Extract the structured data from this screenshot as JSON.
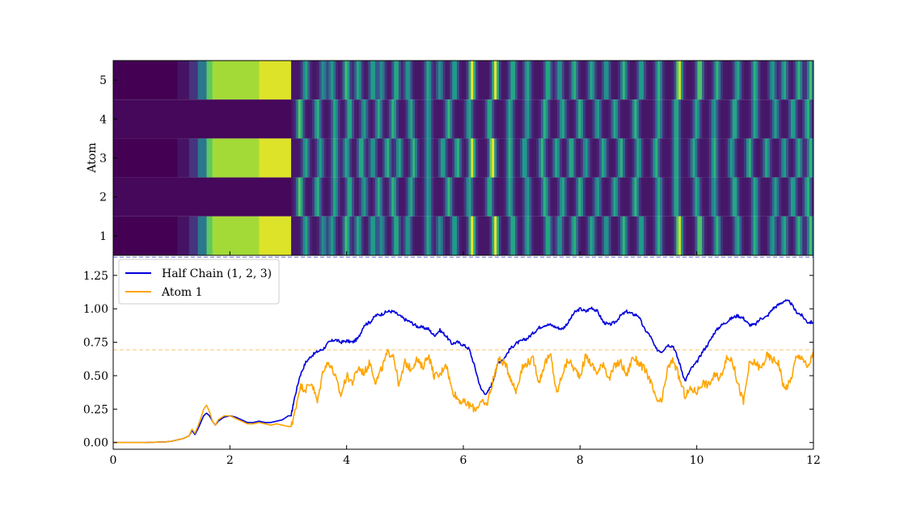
{
  "chart_data": [
    {
      "type": "heatmap",
      "ylabel": "Atom",
      "y_categories": [
        "1",
        "2",
        "3",
        "4",
        "5"
      ],
      "xlim": [
        0,
        12
      ],
      "colormap": [
        "#440154",
        "#482878",
        "#3e4a89",
        "#31688e",
        "#26828e",
        "#1f9e89",
        "#35b779",
        "#6ece58",
        "#b5de2b",
        "#fde725"
      ],
      "grid": false,
      "rows": [
        {
          "atom": "5",
          "segments": [
            [
              0,
              1.1,
              0.0
            ],
            [
              1.1,
              1.3,
              0.05
            ],
            [
              1.3,
              1.45,
              0.15
            ],
            [
              1.45,
              1.6,
              0.4
            ],
            [
              1.6,
              1.7,
              0.75
            ],
            [
              1.7,
              2.5,
              0.86
            ],
            [
              2.5,
              3.05,
              0.95
            ],
            [
              3.05,
              3.2,
              0.25
            ]
          ],
          "peaks_t": [
            3.3,
            3.6,
            3.75,
            4.0,
            4.2,
            4.45,
            4.6,
            4.85,
            5.05,
            5.4,
            5.6,
            5.85,
            6.15,
            6.55,
            6.85,
            7.1,
            7.45,
            7.65,
            7.9,
            8.2,
            8.45,
            8.75,
            9.05,
            9.35,
            9.7,
            10.05,
            10.35,
            10.7,
            11.0,
            11.3,
            11.5,
            11.75,
            11.95
          ],
          "peaks_v": [
            0.55,
            0.45,
            0.5,
            0.65,
            0.55,
            0.55,
            0.45,
            0.6,
            0.5,
            0.55,
            0.45,
            0.55,
            0.95,
            0.95,
            0.6,
            0.55,
            0.6,
            0.5,
            0.6,
            0.55,
            0.5,
            0.6,
            0.55,
            0.6,
            0.9,
            0.75,
            0.6,
            0.55,
            0.6,
            0.5,
            0.55,
            0.6,
            0.65
          ]
        },
        {
          "atom": "4",
          "segments": [
            [
              0,
              3.05,
              0.02
            ]
          ],
          "peaks_t": [
            3.2,
            3.5,
            3.8,
            4.05,
            4.3,
            4.55,
            4.8,
            5.1,
            5.4,
            5.75,
            6.1,
            6.45,
            6.8,
            7.1,
            7.4,
            7.7,
            8.0,
            8.3,
            8.6,
            8.95,
            9.35,
            9.65,
            10.0,
            10.3,
            10.65,
            11.0,
            11.35,
            11.65,
            11.9
          ],
          "peaks_v": [
            0.7,
            0.6,
            0.55,
            0.6,
            0.5,
            0.55,
            0.6,
            0.55,
            0.5,
            0.6,
            0.55,
            0.6,
            0.55,
            0.5,
            0.6,
            0.55,
            0.6,
            0.5,
            0.55,
            0.6,
            0.55,
            0.6,
            0.55,
            0.5,
            0.6,
            0.55,
            0.5,
            0.55,
            0.6
          ]
        },
        {
          "atom": "3",
          "segments": [
            [
              0,
              1.1,
              0.0
            ],
            [
              1.1,
              1.3,
              0.05
            ],
            [
              1.3,
              1.45,
              0.15
            ],
            [
              1.45,
              1.6,
              0.4
            ],
            [
              1.6,
              1.7,
              0.75
            ],
            [
              1.7,
              2.5,
              0.86
            ],
            [
              2.5,
              3.05,
              0.95
            ],
            [
              3.05,
              3.2,
              0.25
            ]
          ],
          "peaks_t": [
            3.3,
            3.55,
            3.8,
            4.0,
            4.25,
            4.45,
            4.7,
            4.9,
            5.15,
            5.4,
            5.65,
            5.9,
            6.15,
            6.5,
            6.8,
            7.05,
            7.35,
            7.6,
            7.85,
            8.1,
            8.4,
            8.7,
            9.0,
            9.3,
            9.65,
            9.95,
            10.3,
            10.6,
            10.9,
            11.2,
            11.5,
            11.75,
            11.95
          ],
          "peaks_v": [
            0.55,
            0.5,
            0.6,
            0.55,
            0.6,
            0.5,
            0.6,
            0.55,
            0.6,
            0.5,
            0.55,
            0.6,
            0.9,
            0.95,
            0.6,
            0.55,
            0.6,
            0.55,
            0.6,
            0.5,
            0.55,
            0.6,
            0.55,
            0.6,
            0.6,
            0.55,
            0.6,
            0.5,
            0.6,
            0.55,
            0.5,
            0.55,
            0.6
          ]
        },
        {
          "atom": "2",
          "segments": [
            [
              0,
              3.05,
              0.02
            ]
          ],
          "peaks_t": [
            3.2,
            3.5,
            3.8,
            4.05,
            4.3,
            4.55,
            4.8,
            5.1,
            5.4,
            5.75,
            6.1,
            6.45,
            6.8,
            7.1,
            7.4,
            7.7,
            8.0,
            8.3,
            8.6,
            8.95,
            9.35,
            9.65,
            10.0,
            10.3,
            10.65,
            11.0,
            11.35,
            11.65,
            11.9
          ],
          "peaks_v": [
            0.7,
            0.6,
            0.55,
            0.6,
            0.5,
            0.55,
            0.6,
            0.55,
            0.5,
            0.6,
            0.55,
            0.6,
            0.55,
            0.5,
            0.6,
            0.55,
            0.6,
            0.5,
            0.55,
            0.6,
            0.55,
            0.6,
            0.55,
            0.5,
            0.6,
            0.55,
            0.5,
            0.55,
            0.6
          ]
        },
        {
          "atom": "1",
          "segments": [
            [
              0,
              1.1,
              0.0
            ],
            [
              1.1,
              1.3,
              0.05
            ],
            [
              1.3,
              1.45,
              0.15
            ],
            [
              1.45,
              1.6,
              0.4
            ],
            [
              1.6,
              1.7,
              0.75
            ],
            [
              1.7,
              2.5,
              0.86
            ],
            [
              2.5,
              3.05,
              0.95
            ],
            [
              3.05,
              3.2,
              0.25
            ]
          ],
          "peaks_t": [
            3.3,
            3.6,
            3.75,
            4.0,
            4.2,
            4.45,
            4.6,
            4.85,
            5.05,
            5.4,
            5.6,
            5.85,
            6.15,
            6.55,
            6.85,
            7.1,
            7.45,
            7.65,
            7.9,
            8.2,
            8.45,
            8.75,
            9.05,
            9.35,
            9.7,
            10.05,
            10.35,
            10.7,
            11.0,
            11.3,
            11.5,
            11.75,
            11.95
          ],
          "peaks_v": [
            0.55,
            0.45,
            0.5,
            0.65,
            0.55,
            0.55,
            0.45,
            0.6,
            0.5,
            0.55,
            0.45,
            0.55,
            0.95,
            0.95,
            0.6,
            0.55,
            0.6,
            0.5,
            0.6,
            0.55,
            0.5,
            0.6,
            0.55,
            0.6,
            0.9,
            0.75,
            0.6,
            0.55,
            0.6,
            0.5,
            0.55,
            0.6,
            0.65
          ]
        }
      ]
    },
    {
      "type": "line",
      "xlim": [
        0,
        12
      ],
      "ylim": [
        -0.05,
        1.4
      ],
      "x_ticks": [
        "0",
        "2",
        "4",
        "6",
        "8",
        "10",
        "12"
      ],
      "y_ticks": [
        "0.00",
        "0.25",
        "0.50",
        "0.75",
        "1.00",
        "1.25"
      ],
      "grid": false,
      "legend_position": "top-left",
      "reference_lines": [
        {
          "y": 1.386,
          "color": "#7b86e0",
          "style": "dashed"
        },
        {
          "y": 0.693,
          "color": "#f9cf8a",
          "style": "dashed"
        }
      ],
      "series": [
        {
          "name": "Half Chain (1, 2, 3)",
          "color": "#0000dd",
          "x": [
            0,
            0.5,
            0.9,
            1.0,
            1.1,
            1.2,
            1.3,
            1.35,
            1.4,
            1.45,
            1.5,
            1.55,
            1.6,
            1.65,
            1.7,
            1.75,
            1.8,
            1.9,
            2.0,
            2.1,
            2.2,
            2.3,
            2.4,
            2.5,
            2.6,
            2.7,
            2.8,
            2.9,
            3.0,
            3.05,
            3.1,
            3.2,
            3.3,
            3.4,
            3.5,
            3.6,
            3.7,
            3.8,
            3.9,
            4.0,
            4.1,
            4.2,
            4.3,
            4.4,
            4.5,
            4.6,
            4.7,
            4.8,
            4.9,
            5.0,
            5.1,
            5.2,
            5.3,
            5.4,
            5.5,
            5.6,
            5.7,
            5.8,
            5.9,
            6.0,
            6.1,
            6.2,
            6.3,
            6.4,
            6.5,
            6.6,
            6.7,
            6.8,
            6.9,
            7.0,
            7.1,
            7.2,
            7.3,
            7.4,
            7.5,
            7.6,
            7.7,
            7.8,
            7.9,
            8.0,
            8.1,
            8.2,
            8.3,
            8.4,
            8.5,
            8.6,
            8.7,
            8.8,
            8.9,
            9.0,
            9.1,
            9.2,
            9.3,
            9.4,
            9.5,
            9.6,
            9.7,
            9.8,
            9.9,
            10.0,
            10.1,
            10.2,
            10.3,
            10.4,
            10.5,
            10.6,
            10.7,
            10.8,
            10.9,
            11.0,
            11.1,
            11.2,
            11.3,
            11.4,
            11.5,
            11.6,
            11.7,
            11.8,
            11.9,
            12.0
          ],
          "y": [
            0.0,
            0.0,
            0.005,
            0.01,
            0.02,
            0.03,
            0.05,
            0.09,
            0.06,
            0.1,
            0.15,
            0.2,
            0.22,
            0.2,
            0.16,
            0.13,
            0.16,
            0.19,
            0.2,
            0.19,
            0.17,
            0.15,
            0.15,
            0.16,
            0.15,
            0.15,
            0.16,
            0.17,
            0.2,
            0.2,
            0.32,
            0.5,
            0.6,
            0.65,
            0.68,
            0.7,
            0.75,
            0.77,
            0.75,
            0.76,
            0.75,
            0.78,
            0.88,
            0.9,
            0.95,
            0.96,
            0.98,
            0.98,
            0.95,
            0.92,
            0.9,
            0.87,
            0.86,
            0.85,
            0.8,
            0.84,
            0.8,
            0.74,
            0.75,
            0.73,
            0.7,
            0.56,
            0.4,
            0.36,
            0.45,
            0.6,
            0.63,
            0.7,
            0.74,
            0.76,
            0.78,
            0.82,
            0.86,
            0.88,
            0.88,
            0.86,
            0.85,
            0.9,
            0.97,
            1.0,
            0.98,
            1.01,
            0.98,
            0.9,
            0.88,
            0.9,
            0.95,
            0.98,
            0.96,
            0.95,
            0.85,
            0.8,
            0.7,
            0.68,
            0.73,
            0.72,
            0.6,
            0.46,
            0.55,
            0.6,
            0.68,
            0.74,
            0.82,
            0.87,
            0.9,
            0.93,
            0.95,
            0.93,
            0.88,
            0.88,
            0.93,
            0.94,
            1.0,
            1.03,
            1.06,
            1.05,
            0.98,
            0.95,
            0.9,
            0.9
          ]
        },
        {
          "name": "Atom 1",
          "color": "#ffa500",
          "x": [
            0,
            0.5,
            0.9,
            1.0,
            1.1,
            1.2,
            1.3,
            1.35,
            1.4,
            1.45,
            1.5,
            1.55,
            1.6,
            1.65,
            1.7,
            1.75,
            1.8,
            1.9,
            2.0,
            2.1,
            2.2,
            2.3,
            2.4,
            2.5,
            2.6,
            2.7,
            2.8,
            2.9,
            3.0,
            3.05,
            3.1,
            3.2,
            3.3,
            3.4,
            3.5,
            3.6,
            3.7,
            3.8,
            3.9,
            4.0,
            4.1,
            4.2,
            4.3,
            4.4,
            4.5,
            4.6,
            4.7,
            4.8,
            4.9,
            5.0,
            5.1,
            5.2,
            5.3,
            5.4,
            5.5,
            5.6,
            5.7,
            5.8,
            5.9,
            6.0,
            6.1,
            6.2,
            6.3,
            6.4,
            6.5,
            6.6,
            6.7,
            6.8,
            6.9,
            7.0,
            7.1,
            7.2,
            7.3,
            7.4,
            7.5,
            7.6,
            7.7,
            7.8,
            7.9,
            8.0,
            8.1,
            8.2,
            8.3,
            8.4,
            8.5,
            8.6,
            8.7,
            8.8,
            8.9,
            9.0,
            9.1,
            9.2,
            9.3,
            9.4,
            9.5,
            9.6,
            9.7,
            9.8,
            9.9,
            10.0,
            10.1,
            10.2,
            10.3,
            10.4,
            10.5,
            10.6,
            10.7,
            10.8,
            10.9,
            11.0,
            11.1,
            11.2,
            11.3,
            11.4,
            11.5,
            11.6,
            11.7,
            11.8,
            11.9,
            12.0
          ],
          "y": [
            0.0,
            0.0,
            0.005,
            0.01,
            0.02,
            0.03,
            0.05,
            0.1,
            0.07,
            0.12,
            0.18,
            0.25,
            0.28,
            0.23,
            0.16,
            0.13,
            0.17,
            0.2,
            0.2,
            0.18,
            0.16,
            0.14,
            0.14,
            0.15,
            0.14,
            0.13,
            0.14,
            0.13,
            0.12,
            0.12,
            0.2,
            0.42,
            0.4,
            0.45,
            0.3,
            0.55,
            0.6,
            0.5,
            0.35,
            0.5,
            0.45,
            0.56,
            0.52,
            0.6,
            0.45,
            0.55,
            0.67,
            0.66,
            0.42,
            0.6,
            0.55,
            0.62,
            0.56,
            0.66,
            0.5,
            0.5,
            0.6,
            0.4,
            0.33,
            0.3,
            0.28,
            0.25,
            0.3,
            0.28,
            0.45,
            0.62,
            0.6,
            0.5,
            0.38,
            0.55,
            0.6,
            0.62,
            0.45,
            0.6,
            0.65,
            0.36,
            0.52,
            0.62,
            0.55,
            0.5,
            0.65,
            0.58,
            0.52,
            0.6,
            0.47,
            0.58,
            0.6,
            0.5,
            0.64,
            0.6,
            0.55,
            0.47,
            0.32,
            0.3,
            0.55,
            0.62,
            0.48,
            0.35,
            0.4,
            0.38,
            0.45,
            0.43,
            0.5,
            0.48,
            0.62,
            0.63,
            0.45,
            0.3,
            0.58,
            0.6,
            0.55,
            0.65,
            0.62,
            0.6,
            0.4,
            0.45,
            0.63,
            0.65,
            0.55,
            0.68
          ]
        }
      ]
    }
  ]
}
